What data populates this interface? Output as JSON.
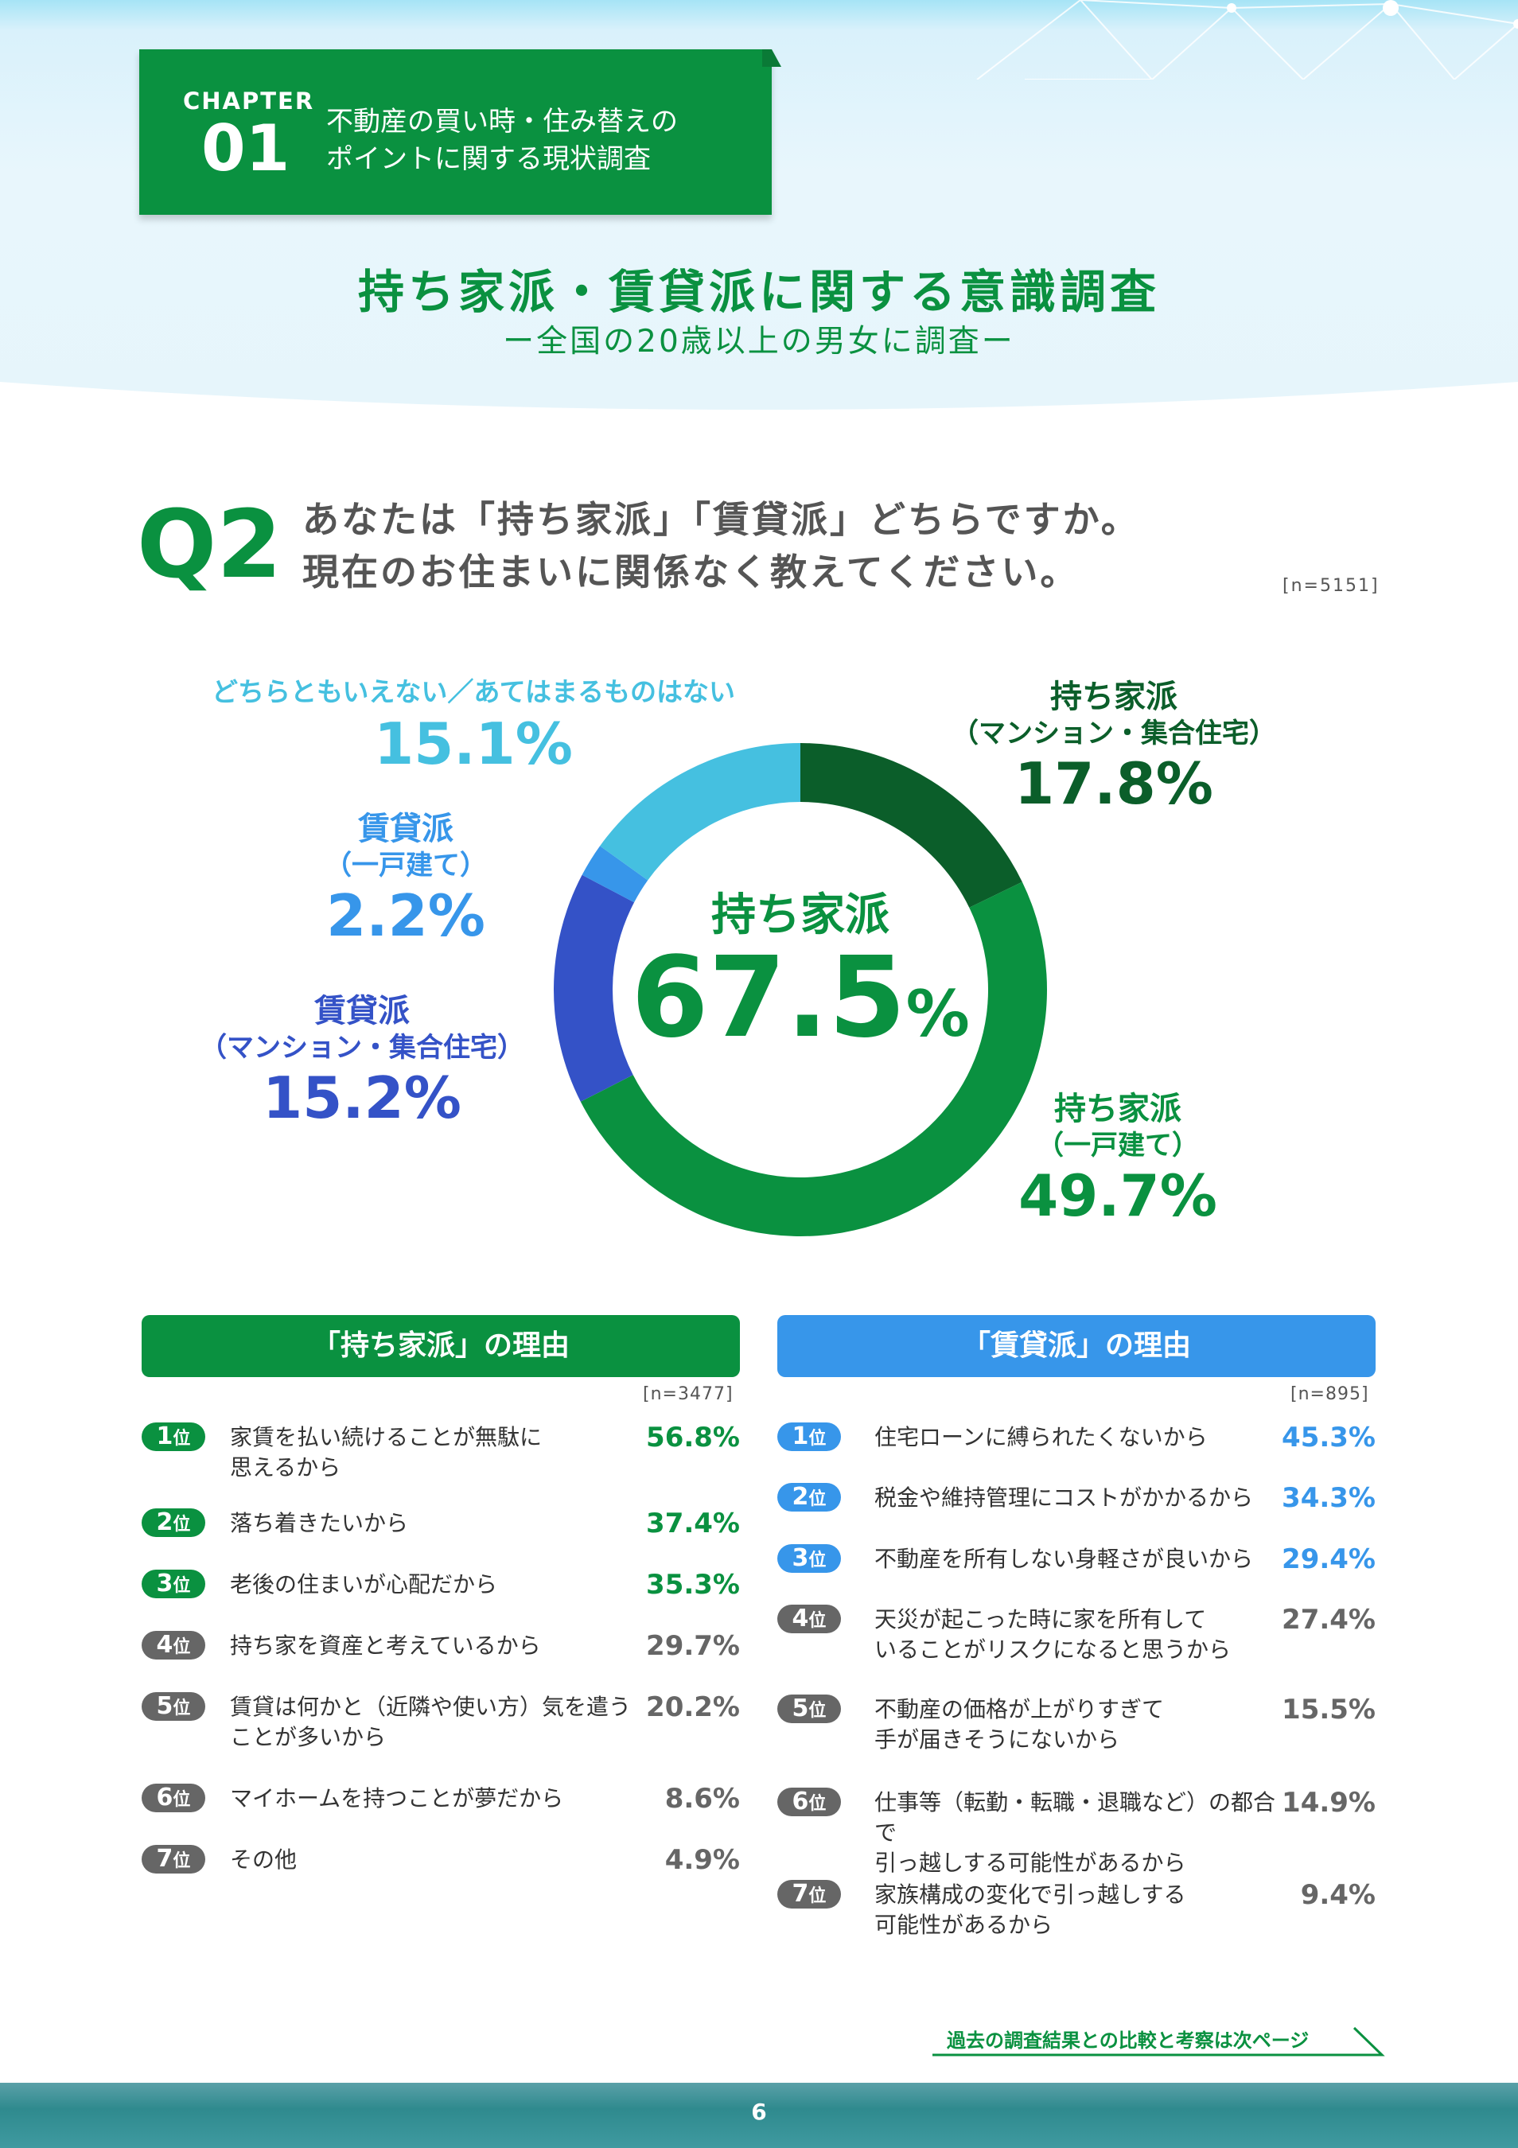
{
  "chapter": {
    "label": "CHAPTER",
    "number": "01",
    "title_lines": [
      "不動産の買い時・住み替えの",
      "ポイントに関する現状調査"
    ]
  },
  "title": "持ち家派・賃貸派に関する意識調査",
  "subtitle": "ー全国の20歳以上の男女に調査ー",
  "question": {
    "label": "Q2",
    "lines": [
      "あなたは「持ち家派」「賃貸派」どちらですか。",
      "現在のお住まいに関係なく教えてください。"
    ],
    "n": "[n=5151]"
  },
  "colors": {
    "own_condo": "#0b5e2a",
    "own_house": "#0a9140",
    "rent_condo": "#3452c7",
    "rent_house": "#3796ea",
    "neither": "#45c0e0",
    "gray_badge": "#666666"
  },
  "chart_data": {
    "type": "pie",
    "center_label": "持ち家派",
    "center_value": "67.5",
    "center_unit": "%",
    "slices": [
      {
        "name": "持ち家派",
        "sub": "（マンション・集合住宅）",
        "value": 17.8,
        "display": "17.8%",
        "color": "#0b5e2a"
      },
      {
        "name": "持ち家派",
        "sub": "（一戸建て）",
        "value": 49.7,
        "display": "49.7%",
        "color": "#0a9140"
      },
      {
        "name": "賃貸派",
        "sub": "（マンション・集合住宅）",
        "value": 15.2,
        "display": "15.2%",
        "color": "#3452c7"
      },
      {
        "name": "賃貸派",
        "sub": "（一戸建て）",
        "value": 2.2,
        "display": "2.2%",
        "color": "#3796ea"
      },
      {
        "name": "どちらともいえない／あてはまるものはない",
        "sub": "",
        "value": 15.1,
        "display": "15.1%",
        "color": "#45c0e0"
      }
    ]
  },
  "own_reasons": {
    "header": "「持ち家派」の理由",
    "n": "[n=3477]",
    "items": [
      {
        "rank": "1",
        "suffix": "位",
        "lines": [
          "家賃を払い続けることが無駄に",
          "思えるから"
        ],
        "pct": "56.8%",
        "highlight": true
      },
      {
        "rank": "2",
        "suffix": "位",
        "lines": [
          "落ち着きたいから"
        ],
        "pct": "37.4%",
        "highlight": true
      },
      {
        "rank": "3",
        "suffix": "位",
        "lines": [
          "老後の住まいが心配だから"
        ],
        "pct": "35.3%",
        "highlight": true
      },
      {
        "rank": "4",
        "suffix": "位",
        "lines": [
          "持ち家を資産と考えているから"
        ],
        "pct": "29.7%",
        "highlight": false
      },
      {
        "rank": "5",
        "suffix": "位",
        "lines": [
          "賃貸は何かと（近隣や使い方）気を遣う",
          "ことが多いから"
        ],
        "pct": "20.2%",
        "highlight": false
      },
      {
        "rank": "6",
        "suffix": "位",
        "lines": [
          "マイホームを持つことが夢だから"
        ],
        "pct": "8.6%",
        "highlight": false
      },
      {
        "rank": "7",
        "suffix": "位",
        "lines": [
          "その他"
        ],
        "pct": "4.9%",
        "highlight": false
      }
    ]
  },
  "rent_reasons": {
    "header": "「賃貸派」の理由",
    "n": "[n=895]",
    "items": [
      {
        "rank": "1",
        "suffix": "位",
        "lines": [
          "住宅ローンに縛られたくないから"
        ],
        "pct": "45.3%",
        "highlight": true
      },
      {
        "rank": "2",
        "suffix": "位",
        "lines": [
          "税金や維持管理にコストがかかるから"
        ],
        "pct": "34.3%",
        "highlight": true
      },
      {
        "rank": "3",
        "suffix": "位",
        "lines": [
          "不動産を所有しない身軽さが良いから"
        ],
        "pct": "29.4%",
        "highlight": true
      },
      {
        "rank": "4",
        "suffix": "位",
        "lines": [
          "天災が起こった時に家を所有して",
          "いることがリスクになると思うから"
        ],
        "pct": "27.4%",
        "highlight": false
      },
      {
        "rank": "5",
        "suffix": "位",
        "lines": [
          "不動産の価格が上がりすぎて",
          "手が届きそうにないから"
        ],
        "pct": "15.5%",
        "highlight": false
      },
      {
        "rank": "6",
        "suffix": "位",
        "lines": [
          "仕事等（転勤・転職・退職など）の都合で",
          "引っ越しする可能性があるから"
        ],
        "pct": "14.9%",
        "highlight": false
      },
      {
        "rank": "7",
        "suffix": "位",
        "lines": [
          "家族構成の変化で引っ越しする",
          "可能性があるから"
        ],
        "pct": "9.4%",
        "highlight": false
      }
    ]
  },
  "next_page": "過去の調査結果との比較と考察は次ページ",
  "page_number": "6"
}
